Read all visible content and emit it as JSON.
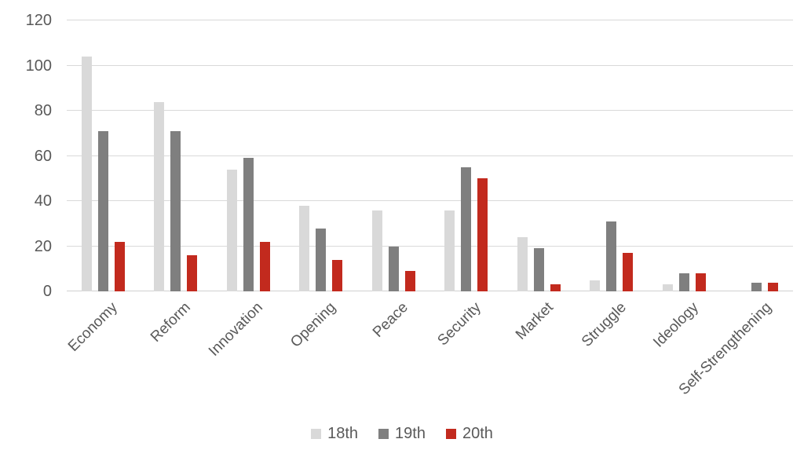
{
  "chart_data": {
    "type": "bar",
    "title": "",
    "xlabel": "",
    "ylabel": "",
    "categories": [
      "Economy",
      "Reform",
      "Innovation",
      "Opening",
      "Peace",
      "Security",
      "Market",
      "Struggle",
      "Ideology",
      "Self-Strengthening"
    ],
    "series": [
      {
        "name": "18th",
        "color": "#d9d9d9",
        "values": [
          104,
          84,
          54,
          38,
          36,
          36,
          24,
          5,
          3,
          0
        ]
      },
      {
        "name": "19th",
        "color": "#7f7f7f",
        "values": [
          71,
          71,
          59,
          28,
          20,
          55,
          19,
          31,
          8,
          4
        ]
      },
      {
        "name": "20th",
        "color": "#c22a1e",
        "values": [
          22,
          16,
          22,
          14,
          9,
          50,
          3,
          17,
          8,
          4
        ]
      }
    ],
    "y_axis": {
      "min": 0,
      "max": 120,
      "step": 20,
      "tick_labels": [
        "0",
        "20",
        "40",
        "60",
        "80",
        "100",
        "120"
      ]
    },
    "grid": true,
    "legend_position": "bottom",
    "colors": {
      "axis_text": "#595959",
      "gridline": "#d9d9d9",
      "background": "#ffffff"
    }
  }
}
